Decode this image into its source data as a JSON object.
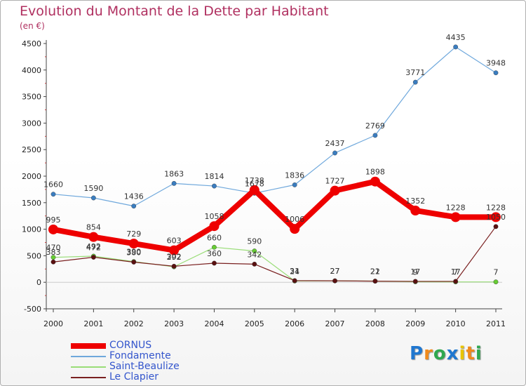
{
  "chart_data": {
    "type": "line",
    "title": "Evolution du Montant de la Dette par Habitant",
    "unit_label": "(en €)",
    "x": [
      "2000",
      "2001",
      "2002",
      "2003",
      "2004",
      "2005",
      "2006",
      "2007",
      "2008",
      "2009",
      "2010",
      "2011"
    ],
    "ylim": [
      -500,
      4500
    ],
    "yticks": [
      -500,
      0,
      500,
      1000,
      1500,
      2000,
      2500,
      3000,
      3500,
      4000,
      4500
    ],
    "grid": false,
    "legend_position": "bottom-left",
    "series": [
      {
        "name": "CORNUS",
        "color": "#ee0000",
        "emphasis": true,
        "values": [
          995,
          854,
          729,
          603,
          1058,
          1738,
          1006,
          1727,
          1898,
          1352,
          1228,
          1228
        ],
        "labels": [
          "995",
          "854",
          "729",
          "603",
          "1058",
          "1738",
          "1006",
          "1727",
          "1898",
          "1352",
          "1228",
          "1228"
        ]
      },
      {
        "name": "Fondamente",
        "color": "#6fa8dc",
        "marker": "#3a7dc0",
        "values": [
          1660,
          1590,
          1436,
          1863,
          1814,
          1678,
          1836,
          2437,
          2769,
          3771,
          4435,
          3948
        ],
        "labels": [
          "1660",
          "1590",
          "1436",
          "1863",
          "1814",
          "1678",
          "1836",
          "2437",
          "2769",
          "3771",
          "4435",
          "3948"
        ]
      },
      {
        "name": "Saint-Beaulize",
        "color": "#99dd77",
        "marker": "#66cc33",
        "values": [
          470,
          492,
          390,
          292,
          660,
          590,
          24,
          27,
          22,
          9,
          7,
          7
        ],
        "labels": [
          "470",
          "492",
          "390",
          "292",
          "660",
          "590",
          "24",
          "27",
          "22",
          "9",
          "7",
          "7"
        ]
      },
      {
        "name": "Le Clapier",
        "color": "#7a2020",
        "marker": "#5a1010",
        "values": [
          383,
          472,
          380,
          302,
          360,
          342,
          31,
          27,
          21,
          17,
          17,
          1050
        ],
        "labels": [
          "383",
          "472",
          "380",
          "302",
          "360",
          "342",
          "31",
          "27",
          "21",
          "17",
          "17",
          "1050"
        ]
      }
    ]
  },
  "logo": {
    "text": "Proxiti",
    "letters": [
      "P",
      "r",
      "o",
      "x",
      "i",
      "t",
      "i"
    ],
    "colors": [
      "#1f77d0",
      "#f08a1c",
      "#2fa84f",
      "#1f77d0",
      "#e8c400",
      "#f08a1c",
      "#2fa84f"
    ]
  }
}
